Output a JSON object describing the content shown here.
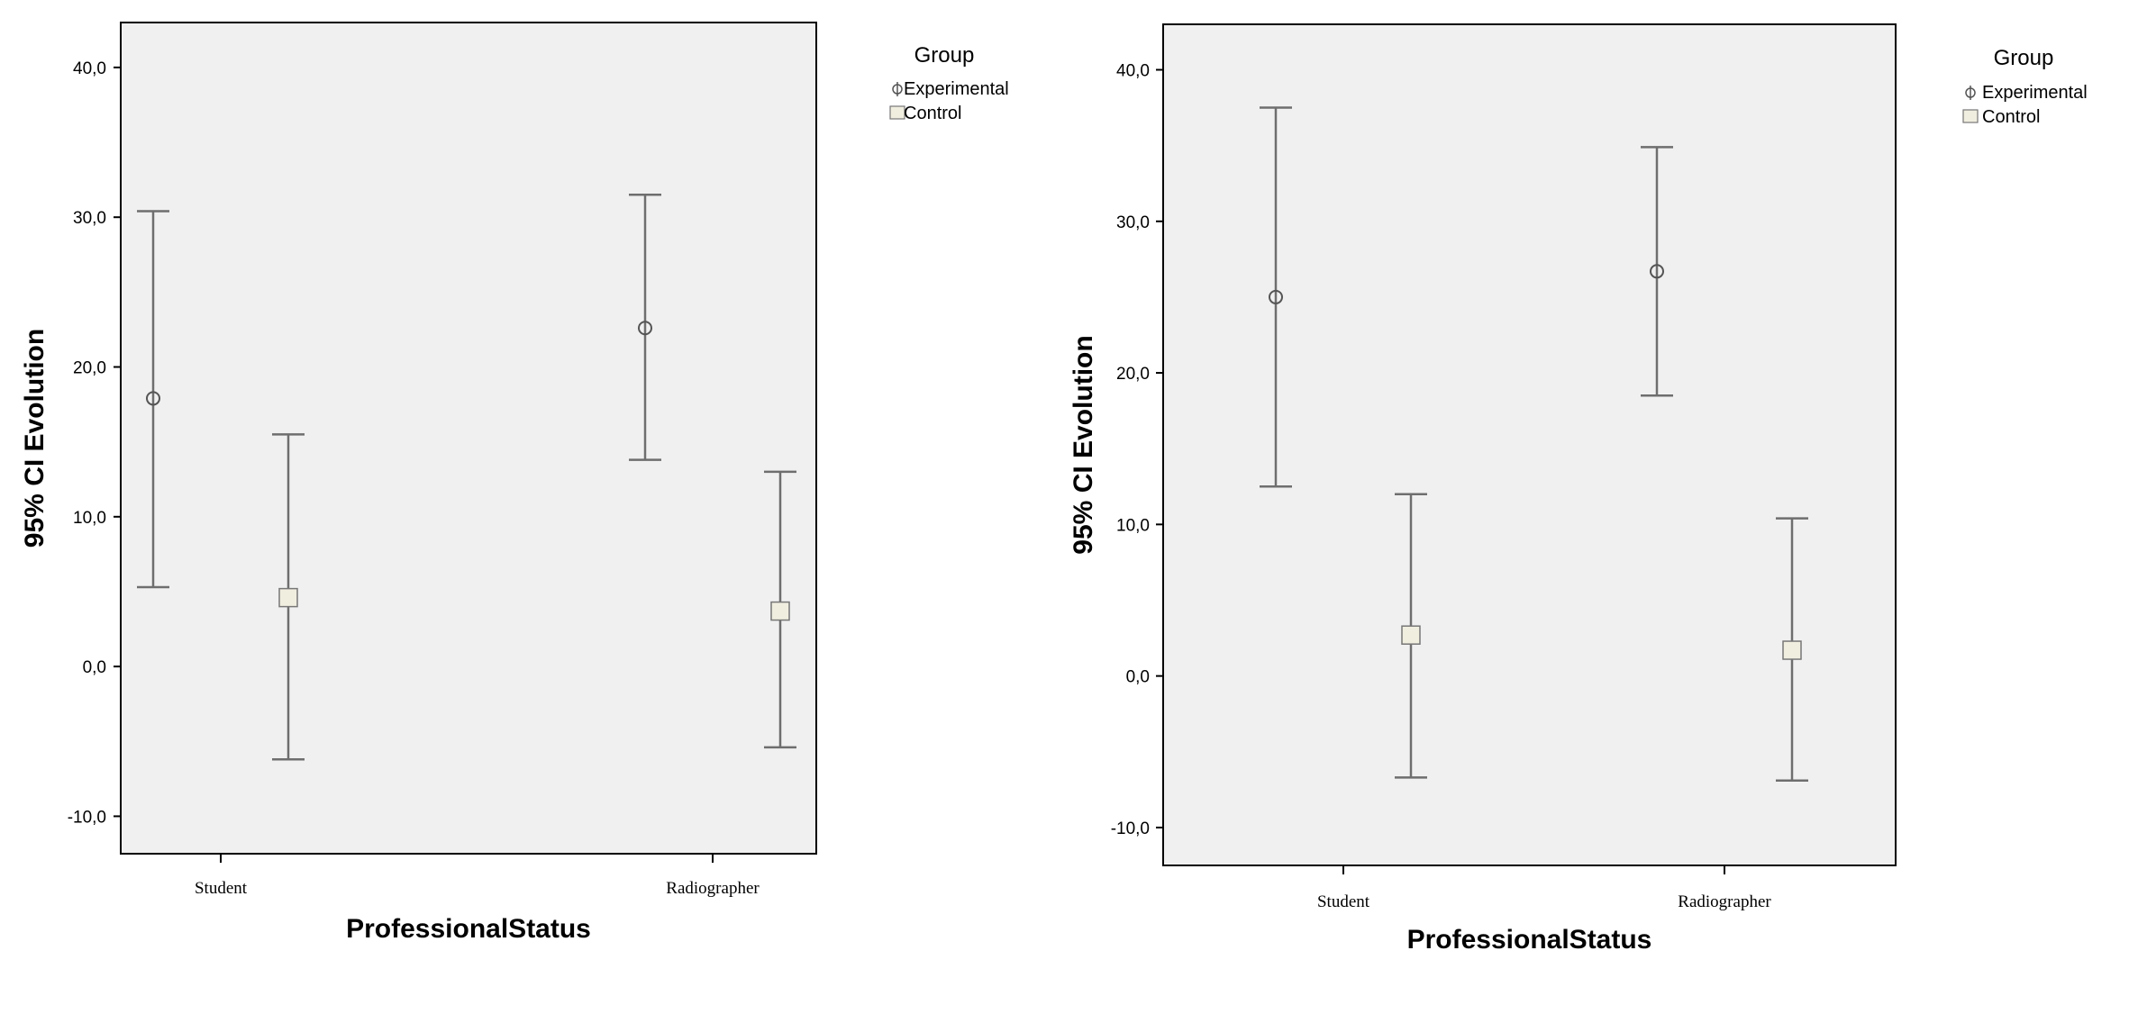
{
  "chart_data": [
    {
      "type": "errorbar",
      "xlabel": "ProfessionalStatus",
      "ylabel": "95% CI Evolution",
      "categories": [
        "Student",
        "Radiographer"
      ],
      "ylim": [
        -12.5,
        43
      ],
      "yticks": [
        -10,
        0,
        10,
        20,
        30,
        40
      ],
      "ytick_labels": [
        "-10,0",
        "0,0",
        "10,0",
        "20,0",
        "30,0",
        "40,0"
      ],
      "grid": false,
      "legend": {
        "title": "Group",
        "position": "top-right outside"
      },
      "series": [
        {
          "name": "Experimental",
          "marker": "circle",
          "mean": [
            17.9,
            22.6
          ],
          "lower": [
            5.3,
            13.8
          ],
          "upper": [
            30.4,
            31.5
          ]
        },
        {
          "name": "Control",
          "marker": "square",
          "mean": [
            4.6,
            3.7
          ],
          "lower": [
            -6.2,
            -5.4
          ],
          "upper": [
            15.5,
            13.0
          ]
        }
      ]
    },
    {
      "type": "errorbar",
      "xlabel": "ProfessionalStatus",
      "ylabel": "95% CI Evolution",
      "categories": [
        "Student",
        "Radiographer"
      ],
      "ylim": [
        -12.5,
        43
      ],
      "yticks": [
        -10,
        0,
        10,
        20,
        30,
        40
      ],
      "ytick_labels": [
        "-10,0",
        "0,0",
        "10,0",
        "20,0",
        "30,0",
        "40,0"
      ],
      "grid": false,
      "legend": {
        "title": "Group",
        "position": "top-right outside"
      },
      "series": [
        {
          "name": "Experimental",
          "marker": "circle",
          "mean": [
            25.0,
            26.7
          ],
          "lower": [
            12.5,
            18.5
          ],
          "upper": [
            37.5,
            34.9
          ]
        },
        {
          "name": "Control",
          "marker": "square",
          "mean": [
            2.7,
            1.7
          ],
          "lower": [
            -6.7,
            -6.9
          ],
          "upper": [
            12.0,
            10.4
          ]
        }
      ]
    }
  ]
}
